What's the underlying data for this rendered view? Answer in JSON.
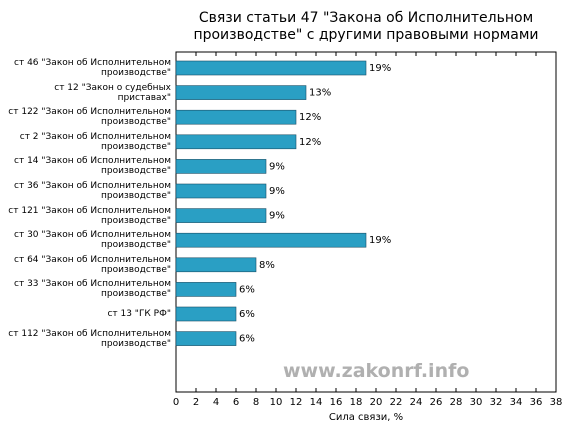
{
  "chart_data": {
    "type": "barh",
    "title": "Связи статьи 47 \"Закона об Исполнительном\nпроизводстве\" с другими правовыми нормами",
    "xlabel": "Сила связи, %",
    "watermark": "www.zakonrf.info",
    "categories": [
      "ст 46 \"Закон об Исполнительном\nпроизводстве\"",
      "ст 12 \"Закон о судебных\nприставах\"",
      "ст 122 \"Закон об Исполнительном\nпроизводстве\"",
      "ст 2 \"Закон об Исполнительном\nпроизводстве\"",
      "ст 14 \"Закон об Исполнительном\nпроизводстве\"",
      "ст 36 \"Закон об Исполнительном\nпроизводстве\"",
      "ст 121 \"Закон об Исполнительном\nпроизводстве\"",
      "ст 30 \"Закон об Исполнительном\nпроизводстве\"",
      "ст 64 \"Закон об Исполнительном\nпроизводстве\"",
      "ст 33 \"Закон об Исполнительном\nпроизводстве\"",
      "ст 13 \"ГК РФ\"",
      "ст 112 \"Закон об Исполнительном\nпроизводстве\""
    ],
    "values": [
      19,
      13,
      12,
      12,
      9,
      9,
      9,
      19,
      8,
      6,
      6,
      6
    ],
    "value_labels": [
      "19%",
      "13%",
      "12%",
      "12%",
      "9%",
      "9%",
      "9%",
      "19%",
      "8%",
      "6%",
      "6%",
      "6%"
    ],
    "color": "#2a9fc4",
    "xlim": [
      0,
      38
    ],
    "xticks": [
      0,
      2,
      4,
      6,
      8,
      10,
      12,
      14,
      16,
      18,
      20,
      22,
      24,
      26,
      28,
      30,
      32,
      34,
      36,
      38
    ]
  }
}
